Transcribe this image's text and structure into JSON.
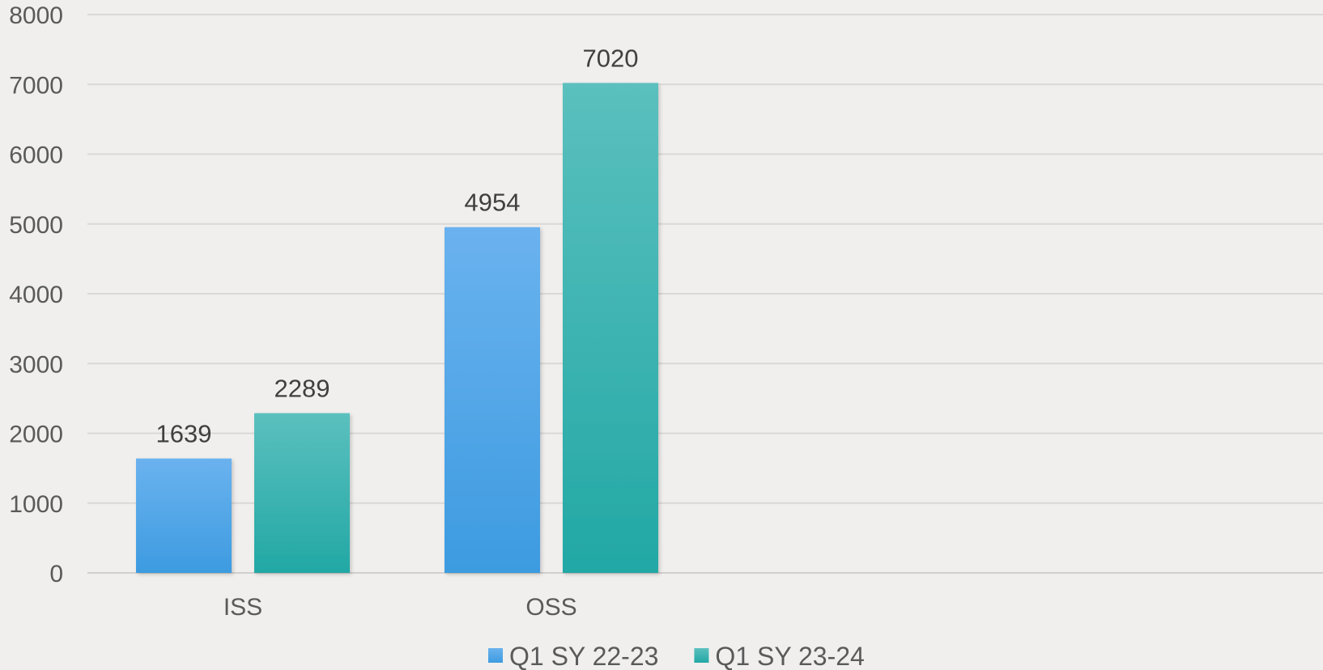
{
  "chart_data": {
    "type": "bar",
    "categories": [
      "ISS",
      "OSS"
    ],
    "series": [
      {
        "name": "Q1 SY 22-23",
        "values": [
          1639,
          4954
        ],
        "color": "#3d9be0",
        "color_light": "#6ab2ef"
      },
      {
        "name": "Q1 SY 23-24",
        "values": [
          2289,
          7020
        ],
        "color": "#22a8a5",
        "color_light": "#5bc0be"
      }
    ],
    "title": "",
    "xlabel": "",
    "ylabel": "",
    "ylim": [
      0,
      8000
    ],
    "yticks": [
      0,
      1000,
      2000,
      3000,
      4000,
      5000,
      6000,
      7000,
      8000
    ],
    "grid": true,
    "legend_position": "bottom-center",
    "data_labels": true
  }
}
